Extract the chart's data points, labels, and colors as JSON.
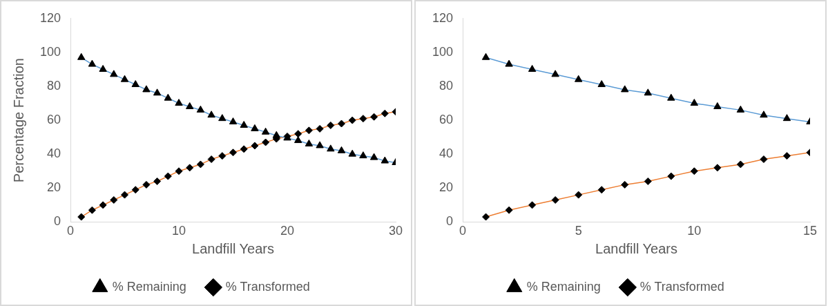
{
  "chart_data": [
    {
      "type": "line",
      "ylabel": "Percentage Fraction",
      "xlabel": "Landfill Years",
      "x": [
        1,
        2,
        3,
        4,
        5,
        6,
        7,
        8,
        9,
        10,
        11,
        12,
        13,
        14,
        15,
        16,
        17,
        18,
        19,
        20,
        21,
        22,
        23,
        24,
        25,
        26,
        27,
        28,
        29,
        30
      ],
      "series": [
        {
          "name": "% Remaining",
          "color": "#5b9bd5",
          "marker": "triangle",
          "values": [
            97,
            93,
            90,
            87,
            84,
            81,
            78,
            76,
            73,
            70,
            68,
            66,
            63,
            61,
            59,
            57,
            55,
            53,
            51,
            49.5,
            48,
            46,
            45,
            43,
            42,
            40,
            39,
            38,
            36,
            35
          ]
        },
        {
          "name": "% Transformed",
          "color": "#ed7d31",
          "marker": "diamond",
          "values": [
            3,
            7,
            10,
            13,
            16,
            19,
            22,
            24,
            27,
            30,
            32,
            34,
            37,
            39,
            41,
            43,
            45,
            47,
            49,
            50.5,
            52,
            54,
            55,
            57,
            58,
            60,
            61,
            62,
            64,
            65
          ]
        }
      ],
      "xlim": [
        0,
        30
      ],
      "xticks": [
        0,
        10,
        20,
        30
      ],
      "ylim": [
        0,
        120
      ],
      "yticks": [
        0,
        20,
        40,
        60,
        80,
        100,
        120
      ],
      "grid": false,
      "legend": "bottom"
    },
    {
      "type": "line",
      "xlabel": "Landfill Years",
      "x": [
        1,
        2,
        3,
        4,
        5,
        6,
        7,
        8,
        9,
        10,
        11,
        12,
        13,
        14,
        15
      ],
      "series": [
        {
          "name": "% Remaining",
          "color": "#5b9bd5",
          "marker": "triangle",
          "values": [
            97,
            93,
            90,
            87,
            84,
            81,
            78,
            76,
            73,
            70,
            68,
            66,
            63,
            61,
            59
          ]
        },
        {
          "name": "% Transformed",
          "color": "#ed7d31",
          "marker": "diamond",
          "values": [
            3,
            7,
            10,
            13,
            16,
            19,
            22,
            24,
            27,
            30,
            32,
            34,
            37,
            39,
            41
          ]
        }
      ],
      "xlim": [
        0,
        15
      ],
      "xticks": [
        0,
        5,
        10,
        15
      ],
      "ylim": [
        0,
        120
      ],
      "yticks": [
        0,
        20,
        40,
        60,
        80,
        100,
        120
      ],
      "grid": false,
      "legend": "bottom"
    }
  ]
}
